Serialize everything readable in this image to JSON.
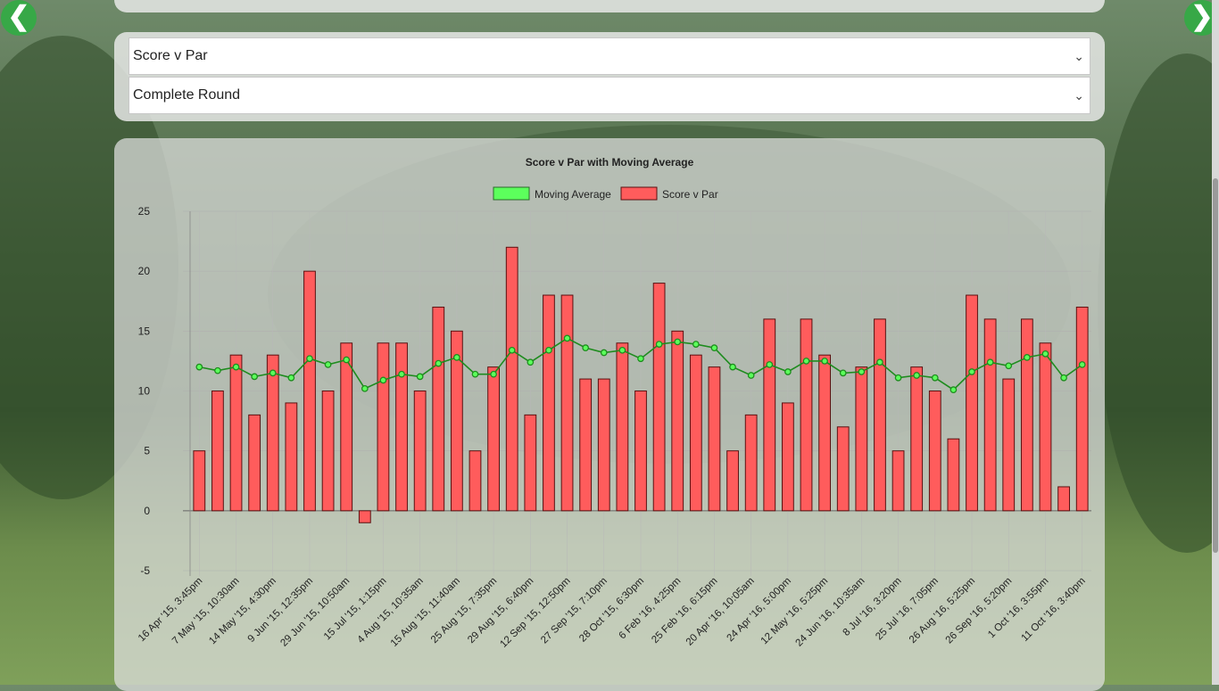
{
  "nav": {
    "prev_label": "❮",
    "next_label": "❯"
  },
  "selects": {
    "metric": {
      "value": "Score v Par"
    },
    "scope": {
      "value": "Complete Round"
    }
  },
  "chart_data": {
    "type": "bar",
    "title": "Score v Par with Moving Average",
    "legend_position": "top",
    "ylim": [
      -5,
      25
    ],
    "yticks": [
      -5,
      0,
      5,
      10,
      15,
      20,
      25
    ],
    "grid": true,
    "colors": {
      "bar": "#ff5c5c",
      "bar_border": "#5a1010",
      "line": "#1e8c1e",
      "legend_line": "#5cff5c"
    },
    "x_tick_labels": [
      "16 Apr '15, 3:45pm",
      "7 May '15, 10:30am",
      "14 May '15, 4:30pm",
      "9 Jun '15, 12:35pm",
      "29 Jun '15, 10:50am",
      "15 Jul '15, 1:15pm",
      "4 Aug '15, 10:35am",
      "15 Aug '15, 11:40am",
      "25 Aug '15, 7:35pm",
      "29 Aug '15, 6:40pm",
      "12 Sep '15, 12:50pm",
      "27 Sep '15, 7:10pm",
      "28 Oct '15, 6:30pm",
      "6 Feb '16, 4:25pm",
      "25 Feb '16, 6:15pm",
      "20 Apr '16, 10:05am",
      "24 Apr '16, 5:00pm",
      "12 May '16, 5:25pm",
      "24 Jun '16, 10:35am",
      "8 Jul '16, 3:20pm",
      "25 Jul '16, 7:05pm",
      "26 Aug '16, 5:25pm",
      "26 Sep '16, 5:20pm",
      "1 Oct '16, 3:55pm",
      "11 Oct '16, 3:40pm"
    ],
    "series": [
      {
        "name": "Moving Average",
        "type": "line",
        "values": [
          12.0,
          11.7,
          12.0,
          11.2,
          11.5,
          11.1,
          12.7,
          12.2,
          12.6,
          10.2,
          10.9,
          11.4,
          11.2,
          12.3,
          12.8,
          11.4,
          11.4,
          13.4,
          12.4,
          13.4,
          14.4,
          13.6,
          13.2,
          13.4,
          12.7,
          13.9,
          14.1,
          13.9,
          13.6,
          12.0,
          11.3,
          12.2,
          11.6,
          12.5,
          12.5,
          11.5,
          11.6,
          12.4,
          11.1,
          11.3,
          11.1,
          10.1,
          11.6,
          12.4,
          12.1,
          12.8,
          13.1,
          11.1,
          12.2
        ]
      },
      {
        "name": "Score v Par",
        "type": "bar",
        "values": [
          5,
          10,
          13,
          8,
          13,
          9,
          20,
          10,
          14,
          -1,
          14,
          14,
          10,
          17,
          15,
          5,
          12,
          22,
          8,
          18,
          18,
          11,
          11,
          14,
          10,
          19,
          15,
          13,
          12,
          5,
          8,
          16,
          9,
          16,
          13,
          7,
          12,
          16,
          5,
          12,
          10,
          6,
          18,
          16,
          11,
          16,
          14,
          2,
          17
        ]
      }
    ]
  }
}
